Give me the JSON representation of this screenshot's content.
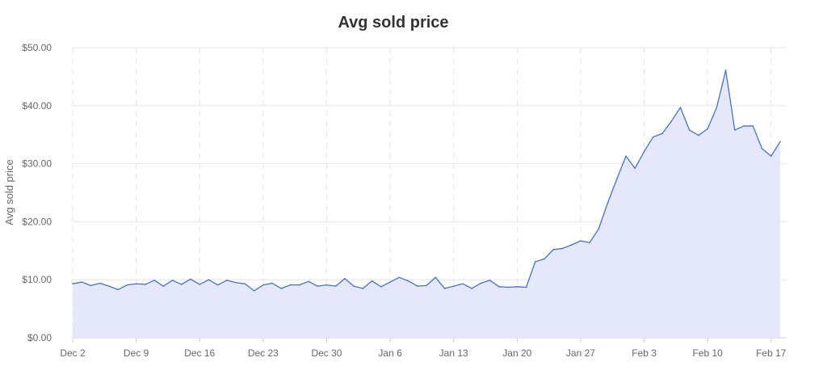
{
  "chart_data": {
    "type": "area",
    "title": "Avg sold price",
    "xlabel": "",
    "ylabel": "Avg sold price",
    "ylim": [
      0,
      50
    ],
    "grid": {
      "horizontal": true,
      "vertical": "dashed"
    },
    "x_tick_labels": [
      "Dec 2",
      "Dec 9",
      "Dec 16",
      "Dec 23",
      "Dec 30",
      "Jan 6",
      "Jan 13",
      "Jan 20",
      "Jan 27",
      "Feb 3",
      "Feb 10",
      "Feb 17"
    ],
    "y_ticks": [
      0,
      10,
      20,
      30,
      40,
      50
    ],
    "y_tick_labels": [
      "$0.00",
      "$10.00",
      "$20.00",
      "$30.00",
      "$40.00",
      "$50.00"
    ],
    "x": [
      "Dec 2",
      "Dec 3",
      "Dec 4",
      "Dec 5",
      "Dec 6",
      "Dec 7",
      "Dec 8",
      "Dec 9",
      "Dec 10",
      "Dec 11",
      "Dec 12",
      "Dec 13",
      "Dec 14",
      "Dec 15",
      "Dec 16",
      "Dec 17",
      "Dec 18",
      "Dec 19",
      "Dec 20",
      "Dec 21",
      "Dec 22",
      "Dec 23",
      "Dec 24",
      "Dec 25",
      "Dec 26",
      "Dec 27",
      "Dec 28",
      "Dec 29",
      "Dec 30",
      "Dec 31",
      "Jan 1",
      "Jan 2",
      "Jan 3",
      "Jan 4",
      "Jan 5",
      "Jan 6",
      "Jan 7",
      "Jan 8",
      "Jan 9",
      "Jan 10",
      "Jan 11",
      "Jan 12",
      "Jan 13",
      "Jan 14",
      "Jan 15",
      "Jan 16",
      "Jan 17",
      "Jan 18",
      "Jan 19",
      "Jan 20",
      "Jan 21",
      "Jan 22",
      "Jan 23",
      "Jan 24",
      "Jan 25",
      "Jan 26",
      "Jan 27",
      "Jan 28",
      "Jan 29",
      "Jan 30",
      "Jan 31",
      "Feb 1",
      "Feb 2",
      "Feb 3",
      "Feb 4",
      "Feb 5",
      "Feb 6",
      "Feb 7",
      "Feb 8",
      "Feb 9",
      "Feb 10",
      "Feb 11",
      "Feb 12",
      "Feb 13",
      "Feb 14",
      "Feb 15",
      "Feb 16",
      "Feb 17",
      "Feb 18"
    ],
    "series": [
      {
        "values": [
          9.3,
          9.6,
          9.0,
          9.4,
          8.9,
          8.3,
          9.1,
          9.3,
          9.2,
          9.9,
          8.9,
          9.9,
          9.2,
          10.1,
          9.2,
          10.0,
          9.1,
          9.9,
          9.5,
          9.3,
          8.1,
          9.1,
          9.4,
          8.5,
          9.1,
          9.1,
          9.7,
          8.9,
          9.1,
          8.9,
          10.2,
          8.9,
          8.5,
          9.8,
          8.8,
          9.6,
          10.4,
          9.8,
          8.9,
          9.0,
          10.4,
          8.5,
          8.9,
          9.3,
          8.5,
          9.4,
          9.9,
          8.8,
          8.7,
          8.8,
          8.7,
          13.1,
          13.6,
          15.2,
          15.4,
          16.0,
          16.7,
          16.4,
          18.8,
          23.3,
          27.4,
          31.3,
          29.2,
          32.1,
          34.6,
          35.2,
          37.3,
          39.7,
          35.8,
          34.9,
          36.0,
          39.7,
          46.1,
          35.8,
          36.5,
          36.5,
          32.6,
          31.3,
          33.8
        ],
        "color": "#4472c4",
        "fill": "#e5e8fb"
      }
    ]
  }
}
